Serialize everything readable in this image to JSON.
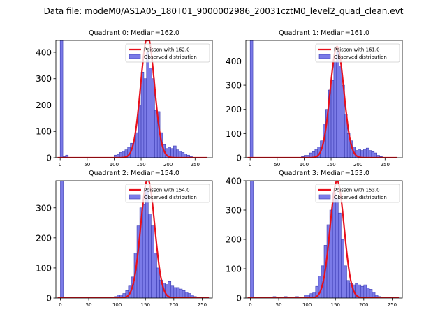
{
  "figure_title": "Data file: modeM0/AS1A05_180T01_9000002986_20031cztM0_level2_quad_clean.evt",
  "colors": {
    "bar_fill": "#7b7be8",
    "bar_edge": "#3a3ab0",
    "curve": "#e8101c",
    "axis": "#000000"
  },
  "chart_data": [
    {
      "type": "bar",
      "title": "Quadrant 0: Median=162.0",
      "xlim": [
        -8,
        282
      ],
      "ylim": [
        0,
        445
      ],
      "xticks": [
        0,
        50,
        100,
        150,
        200,
        250
      ],
      "yticks": [
        0,
        100,
        200,
        300,
        400
      ],
      "legend": {
        "position": "top-right",
        "curve_label": "Poisson with 162.0",
        "bar_label": "Observed distribution"
      },
      "bin_width": 5,
      "bins": [
        {
          "x": 0,
          "y": 445
        },
        {
          "x": 5,
          "y": 5
        },
        {
          "x": 10,
          "y": 10
        },
        {
          "x": 100,
          "y": 10
        },
        {
          "x": 105,
          "y": 12
        },
        {
          "x": 110,
          "y": 20
        },
        {
          "x": 115,
          "y": 25
        },
        {
          "x": 120,
          "y": 30
        },
        {
          "x": 125,
          "y": 40
        },
        {
          "x": 130,
          "y": 55
        },
        {
          "x": 135,
          "y": 70
        },
        {
          "x": 140,
          "y": 95
        },
        {
          "x": 145,
          "y": 200
        },
        {
          "x": 150,
          "y": 325
        },
        {
          "x": 155,
          "y": 300
        },
        {
          "x": 160,
          "y": 400
        },
        {
          "x": 165,
          "y": 340
        },
        {
          "x": 170,
          "y": 300
        },
        {
          "x": 175,
          "y": 180
        },
        {
          "x": 180,
          "y": 175
        },
        {
          "x": 185,
          "y": 95
        },
        {
          "x": 190,
          "y": 50
        },
        {
          "x": 195,
          "y": 35
        },
        {
          "x": 200,
          "y": 40
        },
        {
          "x": 205,
          "y": 35
        },
        {
          "x": 210,
          "y": 45
        },
        {
          "x": 215,
          "y": 30
        },
        {
          "x": 220,
          "y": 25
        },
        {
          "x": 225,
          "y": 20
        },
        {
          "x": 230,
          "y": 15
        },
        {
          "x": 235,
          "y": 10
        },
        {
          "x": 240,
          "y": 5
        }
      ],
      "poisson_mean": 162.0,
      "poisson_peak": 460,
      "curve_range": [
        -5,
        272
      ]
    },
    {
      "type": "bar",
      "title": "Quadrant 1: Median=161.0",
      "xlim": [
        -8,
        282
      ],
      "ylim": [
        0,
        485
      ],
      "xticks": [
        0,
        50,
        100,
        150,
        200,
        250
      ],
      "yticks": [
        0,
        100,
        200,
        300,
        400
      ],
      "legend": {
        "position": "top-right",
        "curve_label": "Poisson with 161.0",
        "bar_label": "Observed distribution"
      },
      "bin_width": 5,
      "bins": [
        {
          "x": 0,
          "y": 485
        },
        {
          "x": 95,
          "y": 5
        },
        {
          "x": 100,
          "y": 10
        },
        {
          "x": 105,
          "y": 10
        },
        {
          "x": 110,
          "y": 20
        },
        {
          "x": 115,
          "y": 25
        },
        {
          "x": 120,
          "y": 35
        },
        {
          "x": 125,
          "y": 45
        },
        {
          "x": 130,
          "y": 70
        },
        {
          "x": 135,
          "y": 140
        },
        {
          "x": 140,
          "y": 200
        },
        {
          "x": 145,
          "y": 280
        },
        {
          "x": 150,
          "y": 320
        },
        {
          "x": 155,
          "y": 400
        },
        {
          "x": 160,
          "y": 440
        },
        {
          "x": 165,
          "y": 380
        },
        {
          "x": 170,
          "y": 300
        },
        {
          "x": 175,
          "y": 180
        },
        {
          "x": 180,
          "y": 100
        },
        {
          "x": 185,
          "y": 70
        },
        {
          "x": 190,
          "y": 45
        },
        {
          "x": 195,
          "y": 30
        },
        {
          "x": 200,
          "y": 35
        },
        {
          "x": 205,
          "y": 30
        },
        {
          "x": 210,
          "y": 35
        },
        {
          "x": 215,
          "y": 40
        },
        {
          "x": 220,
          "y": 30
        },
        {
          "x": 225,
          "y": 25
        },
        {
          "x": 230,
          "y": 20
        },
        {
          "x": 235,
          "y": 10
        },
        {
          "x": 240,
          "y": 5
        }
      ],
      "poisson_mean": 161.0,
      "poisson_peak": 460,
      "curve_range": [
        -5,
        272
      ]
    },
    {
      "type": "bar",
      "title": "Quadrant 2: Median=154.0",
      "xlim": [
        -8,
        268
      ],
      "ylim": [
        0,
        390
      ],
      "xticks": [
        0,
        50,
        100,
        150,
        200,
        250
      ],
      "yticks": [
        0,
        100,
        200,
        300
      ],
      "legend": {
        "position": "top-right",
        "curve_label": "Poisson with 154.0",
        "bar_label": "Observed distribution"
      },
      "bin_width": 5,
      "bins": [
        {
          "x": 0,
          "y": 390
        },
        {
          "x": 95,
          "y": 5
        },
        {
          "x": 100,
          "y": 10
        },
        {
          "x": 105,
          "y": 10
        },
        {
          "x": 110,
          "y": 15
        },
        {
          "x": 115,
          "y": 25
        },
        {
          "x": 120,
          "y": 40
        },
        {
          "x": 125,
          "y": 70
        },
        {
          "x": 130,
          "y": 150
        },
        {
          "x": 135,
          "y": 240
        },
        {
          "x": 140,
          "y": 300
        },
        {
          "x": 145,
          "y": 310
        },
        {
          "x": 150,
          "y": 360
        },
        {
          "x": 155,
          "y": 280
        },
        {
          "x": 160,
          "y": 240
        },
        {
          "x": 165,
          "y": 150
        },
        {
          "x": 170,
          "y": 100
        },
        {
          "x": 175,
          "y": 60
        },
        {
          "x": 180,
          "y": 50
        },
        {
          "x": 185,
          "y": 45
        },
        {
          "x": 190,
          "y": 55
        },
        {
          "x": 195,
          "y": 40
        },
        {
          "x": 200,
          "y": 35
        },
        {
          "x": 205,
          "y": 35
        },
        {
          "x": 210,
          "y": 30
        },
        {
          "x": 215,
          "y": 25
        },
        {
          "x": 220,
          "y": 20
        },
        {
          "x": 225,
          "y": 15
        },
        {
          "x": 230,
          "y": 10
        },
        {
          "x": 235,
          "y": 5
        }
      ],
      "poisson_mean": 154.0,
      "poisson_peak": 395,
      "curve_range": [
        -5,
        262
      ]
    },
    {
      "type": "bar",
      "title": "Quadrant 3: Median=153.0",
      "xlim": [
        -8,
        268
      ],
      "ylim": [
        0,
        400
      ],
      "xticks": [
        0,
        50,
        100,
        150,
        200,
        250
      ],
      "yticks": [
        0,
        100,
        200,
        300,
        400
      ],
      "legend": {
        "position": "top-right",
        "curve_label": "Poisson with 153.0",
        "bar_label": "Observed distribution"
      },
      "bin_width": 5,
      "bins": [
        {
          "x": 0,
          "y": 400
        },
        {
          "x": 40,
          "y": 5
        },
        {
          "x": 60,
          "y": 5
        },
        {
          "x": 80,
          "y": 5
        },
        {
          "x": 95,
          "y": 10
        },
        {
          "x": 100,
          "y": 10
        },
        {
          "x": 105,
          "y": 15
        },
        {
          "x": 110,
          "y": 20
        },
        {
          "x": 115,
          "y": 40
        },
        {
          "x": 120,
          "y": 75
        },
        {
          "x": 125,
          "y": 110
        },
        {
          "x": 130,
          "y": 180
        },
        {
          "x": 135,
          "y": 250
        },
        {
          "x": 140,
          "y": 300
        },
        {
          "x": 145,
          "y": 360
        },
        {
          "x": 150,
          "y": 340
        },
        {
          "x": 155,
          "y": 290
        },
        {
          "x": 160,
          "y": 200
        },
        {
          "x": 165,
          "y": 110
        },
        {
          "x": 170,
          "y": 60
        },
        {
          "x": 175,
          "y": 50
        },
        {
          "x": 180,
          "y": 45
        },
        {
          "x": 185,
          "y": 50
        },
        {
          "x": 190,
          "y": 45
        },
        {
          "x": 195,
          "y": 40
        },
        {
          "x": 200,
          "y": 45
        },
        {
          "x": 205,
          "y": 35
        },
        {
          "x": 210,
          "y": 30
        },
        {
          "x": 215,
          "y": 20
        },
        {
          "x": 220,
          "y": 10
        },
        {
          "x": 225,
          "y": 5
        }
      ],
      "poisson_mean": 153.0,
      "poisson_peak": 400,
      "curve_range": [
        -5,
        262
      ]
    }
  ]
}
